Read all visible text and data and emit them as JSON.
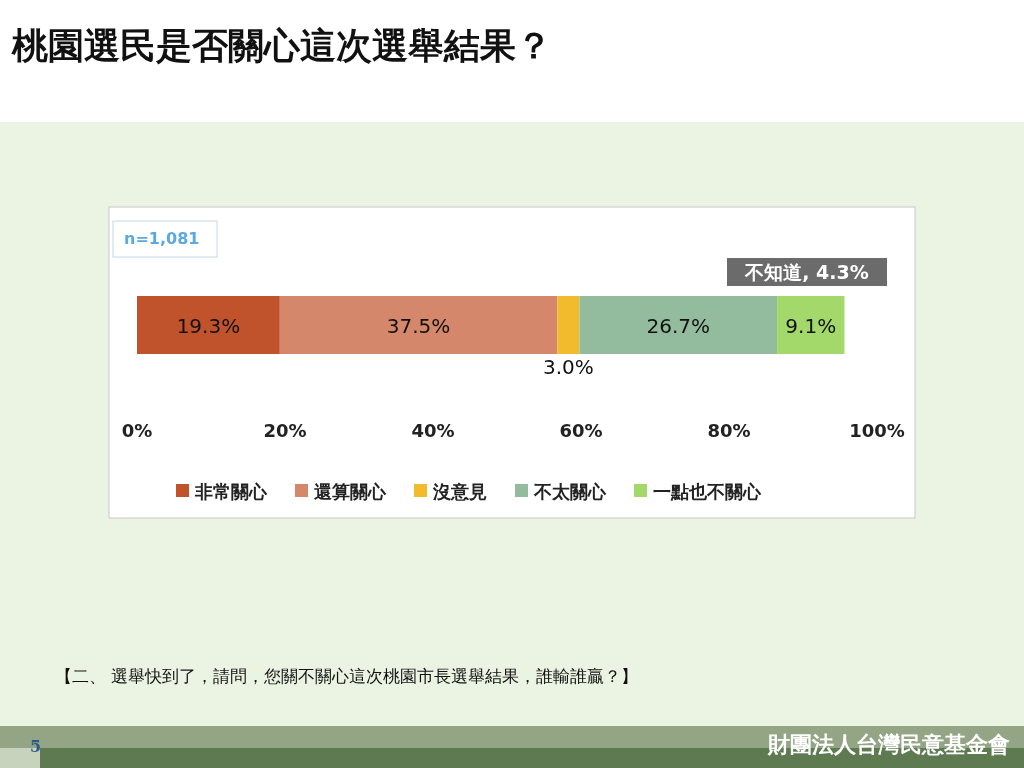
{
  "chart_data": {
    "type": "bar",
    "title": "桃園選民是否關心這次選舉結果？",
    "orientation": "horizontal",
    "stacked": true,
    "categories": [
      null
    ],
    "series": [
      {
        "name": "非常關心",
        "color": "#c0532b",
        "values": [
          19.3
        ],
        "value_labels": [
          "19.3%"
        ]
      },
      {
        "name": "還算關心",
        "color": "#d4876a",
        "values": [
          37.5
        ],
        "value_labels": [
          "37.5%"
        ]
      },
      {
        "name": "沒意見",
        "color": "#f0bc2e",
        "values": [
          3.0
        ],
        "value_labels": [
          "3.0%"
        ]
      },
      {
        "name": "不太關心",
        "color": "#93bc9e",
        "values": [
          26.7
        ],
        "value_labels": [
          "26.7%"
        ]
      },
      {
        "name": "一點也不關心",
        "color": "#a3d86a",
        "values": [
          9.1
        ],
        "value_labels": [
          "9.1%"
        ]
      }
    ],
    "xlim": [
      0,
      100
    ],
    "xticks": [
      {
        "value": 0,
        "label": "0%"
      },
      {
        "value": 20,
        "label": "20%"
      },
      {
        "value": 40,
        "label": "40%"
      },
      {
        "value": 60,
        "label": "60%"
      },
      {
        "value": 80,
        "label": "80%"
      },
      {
        "value": 100,
        "label": "100%"
      }
    ],
    "legend": "bottom",
    "annotations": [
      "n=1,081",
      "不知道, 4.3%",
      "【二、 選舉快到了，請問，您關不關心這次桃園市長選舉結果，誰輸誰贏？】",
      "5",
      "財團法人台灣民意基金會"
    ]
  }
}
